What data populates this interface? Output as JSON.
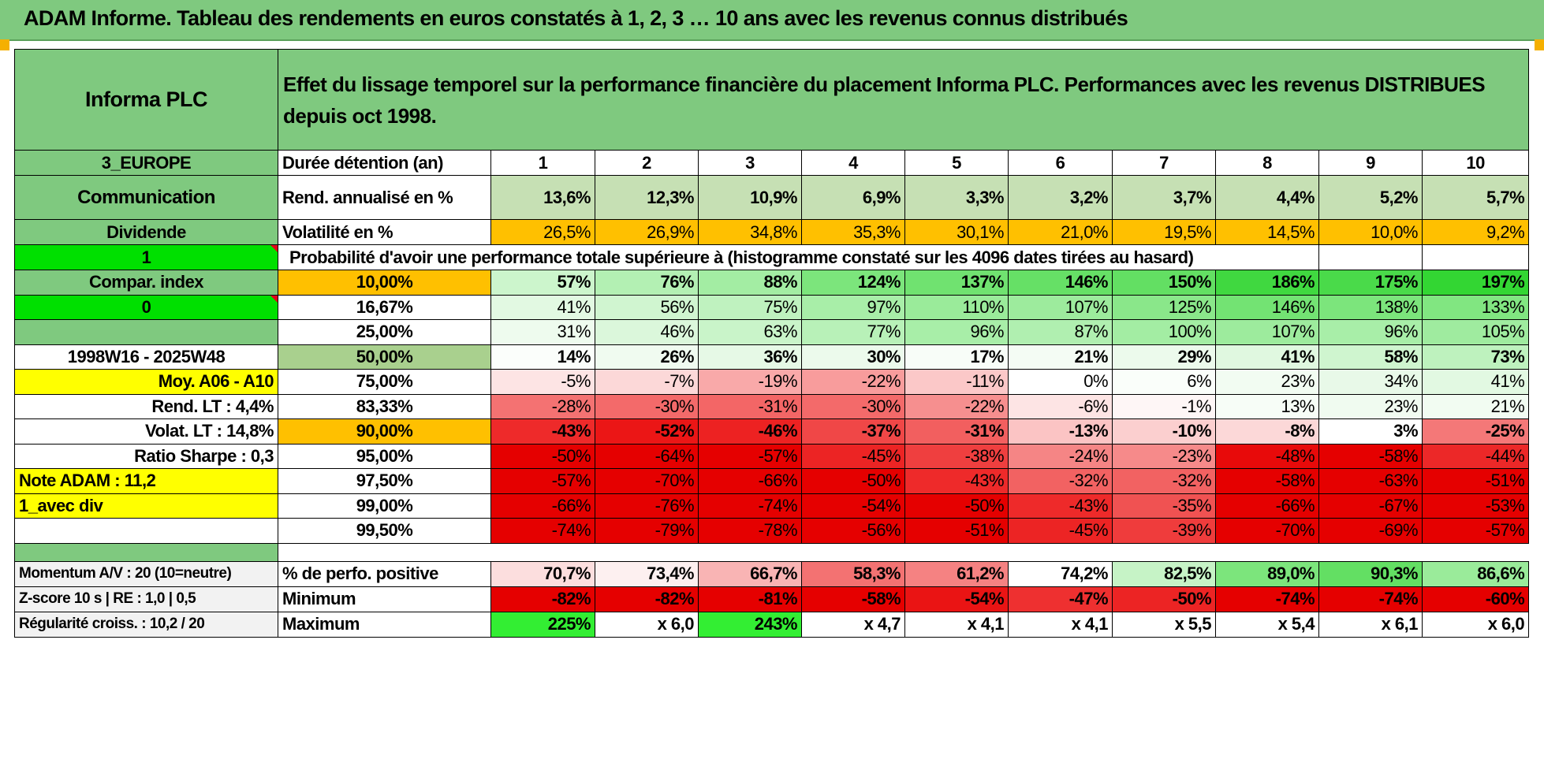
{
  "title": "ADAM Informe. Tableau des rendements en euros constatés à 1, 2, 3 … 10 ans avec les revenus connus distribués",
  "header": {
    "name": "Informa PLC",
    "description": "Effet du lissage temporel sur la performance financière du placement Informa PLC. Performances avec les revenus DISTRIBUES depuis oct 1998."
  },
  "left_labels": {
    "region": "3_EUROPE",
    "sector": "Communication",
    "type": "Dividende",
    "flag1": "1",
    "compar": "Compar. index",
    "flag2": "0",
    "empty": "",
    "period": "1998W16 - 2025W48",
    "moy": "Moy. A06 - A10",
    "rend_lt": "Rend. LT :    4,4%",
    "volat_lt": "Volat. LT :    14,8%",
    "sharpe": "Ratio Sharpe :    0,3",
    "note": "Note ADAM : 11,2",
    "avec_div": "1_avec div"
  },
  "row_labels": {
    "duree": "Durée détention (an)",
    "rend": "Rend. annualisé en %",
    "vol": "Volatilité en %",
    "prob": "Probabilité d'avoir une performance totale supérieure à (histogramme constaté sur les 4096 dates tirées au hasard)"
  },
  "years": [
    "1",
    "2",
    "3",
    "4",
    "5",
    "6",
    "7",
    "8",
    "9",
    "10"
  ],
  "rend": [
    "13,6%",
    "12,3%",
    "10,9%",
    "6,9%",
    "3,3%",
    "3,2%",
    "3,7%",
    "4,4%",
    "5,2%",
    "5,7%"
  ],
  "vol": [
    "26,5%",
    "26,9%",
    "34,8%",
    "35,3%",
    "30,1%",
    "21,0%",
    "19,5%",
    "14,5%",
    "10,0%",
    "9,2%"
  ],
  "quantiles": [
    {
      "q": "10,00%",
      "vals": [
        "57%",
        "76%",
        "88%",
        "124%",
        "137%",
        "146%",
        "150%",
        "186%",
        "175%",
        "197%"
      ],
      "colors": [
        "#ccf5cc",
        "#b3f0b3",
        "#a3eda3",
        "#7ce57c",
        "#70e270",
        "#66e066",
        "#63df63",
        "#40d840",
        "#4ada4a",
        "#33d633"
      ]
    },
    {
      "q": "16,67%",
      "vals": [
        "41%",
        "56%",
        "75%",
        "97%",
        "110%",
        "107%",
        "125%",
        "146%",
        "138%",
        "133%"
      ],
      "colors": [
        "#e2f9e2",
        "#d0f5d0",
        "#bff2bf",
        "#a8eea8",
        "#9aeb9a",
        "#9deb9d",
        "#8ae78a",
        "#73e373",
        "#7ce57c",
        "#81e681"
      ]
    },
    {
      "q": "25,00%",
      "vals": [
        "31%",
        "46%",
        "63%",
        "77%",
        "96%",
        "87%",
        "100%",
        "107%",
        "96%",
        "105%"
      ],
      "colors": [
        "#eefbee",
        "#dbf7db",
        "#c9f4c9",
        "#b8f1b8",
        "#a8eea8",
        "#b0efb0",
        "#a3eda3",
        "#9deb9d",
        "#a8eea8",
        "#9feb9f"
      ]
    },
    {
      "q": "50,00%",
      "vals": [
        "14%",
        "26%",
        "36%",
        "30%",
        "17%",
        "21%",
        "29%",
        "41%",
        "58%",
        "73%"
      ],
      "colors": [
        "#fbfefb",
        "#f0fbf0",
        "#e6f9e6",
        "#ecfaec",
        "#f8fdf8",
        "#f4fcf4",
        "#ecfaec",
        "#e0f8e0",
        "#cff5cf",
        "#bef2be"
      ]
    },
    {
      "q": "75,00%",
      "vals": [
        "-5%",
        "-7%",
        "-19%",
        "-22%",
        "-11%",
        "0%",
        "6%",
        "23%",
        "34%",
        "41%"
      ],
      "colors": [
        "#fde4e4",
        "#fcd8d8",
        "#f9a9a9",
        "#f89c9c",
        "#fbc8c8",
        "#ffffff",
        "#fafefa",
        "#f2fcf2",
        "#e8f9e8",
        "#e2f9e2"
      ]
    },
    {
      "q": "83,33%",
      "vals": [
        "-28%",
        "-30%",
        "-31%",
        "-30%",
        "-22%",
        "-6%",
        "-1%",
        "13%",
        "23%",
        "21%"
      ],
      "colors": [
        "#f47272",
        "#f36a6a",
        "#f36666",
        "#f36a6a",
        "#f68f8f",
        "#fde4e4",
        "#fef6f6",
        "#f7fdf7",
        "#f0fbf0",
        "#f2fcf2"
      ]
    },
    {
      "q": "90,00%",
      "vals": [
        "-43%",
        "-52%",
        "-46%",
        "-37%",
        "-31%",
        "-13%",
        "-10%",
        "-8%",
        "3%",
        "-25%"
      ],
      "colors": [
        "#ee2a2a",
        "#eb1616",
        "#ed2222",
        "#f04747",
        "#f25f5f",
        "#fbc4c4",
        "#fbcfcf",
        "#fcd8d8",
        "#ffffff",
        "#f47878"
      ]
    },
    {
      "q": "95,00%",
      "vals": [
        "-50%",
        "-64%",
        "-57%",
        "-45%",
        "-38%",
        "-24%",
        "-23%",
        "-48%",
        "-58%",
        "-44%"
      ],
      "colors": [
        "#e50000",
        "#e50000",
        "#e50000",
        "#ec2424",
        "#ef3f3f",
        "#f58585",
        "#f68a8a",
        "#e80a0a",
        "#e50000",
        "#ec2828"
      ]
    },
    {
      "q": "97,50%",
      "vals": [
        "-57%",
        "-70%",
        "-66%",
        "-50%",
        "-43%",
        "-32%",
        "-32%",
        "-58%",
        "-63%",
        "-51%"
      ],
      "colors": [
        "#e50000",
        "#e50000",
        "#e50000",
        "#e50000",
        "#ee2a2a",
        "#f26262",
        "#f26262",
        "#e50000",
        "#e50000",
        "#e50000"
      ]
    },
    {
      "q": "99,00%",
      "vals": [
        "-66%",
        "-76%",
        "-74%",
        "-54%",
        "-50%",
        "-43%",
        "-35%",
        "-66%",
        "-67%",
        "-53%"
      ],
      "colors": [
        "#e50000",
        "#e50000",
        "#e50000",
        "#e50000",
        "#e50000",
        "#ee2a2a",
        "#f05252",
        "#e50000",
        "#e50000",
        "#e50000"
      ]
    },
    {
      "q": "99,50%",
      "vals": [
        "-74%",
        "-79%",
        "-78%",
        "-56%",
        "-51%",
        "-45%",
        "-39%",
        "-70%",
        "-69%",
        "-57%"
      ],
      "colors": [
        "#e50000",
        "#e50000",
        "#e50000",
        "#e50000",
        "#e50000",
        "#ec2424",
        "#ef3c3c",
        "#e50000",
        "#e50000",
        "#e50000"
      ]
    }
  ],
  "footer": {
    "momentum": "Momentum A/V : 20 (10=neutre)",
    "zscore": "Z-score 10 s | RE : 1,0 | 0,5",
    "regularite": "Régularité croiss. : 10,2 / 20",
    "pct_label": "% de perfo. positive",
    "min_label": "Minimum",
    "max_label": "Maximum",
    "pct": [
      "70,7%",
      "73,4%",
      "66,7%",
      "58,3%",
      "61,2%",
      "74,2%",
      "82,5%",
      "89,0%",
      "90,3%",
      "86,6%"
    ],
    "pct_colors": [
      "#fcdede",
      "#fdf0f0",
      "#f9b4b4",
      "#f37272",
      "#f58282",
      "#ffffff",
      "#c6f3c6",
      "#7ce57c",
      "#63df63",
      "#9aeb9a"
    ],
    "min": [
      "-82%",
      "-82%",
      "-81%",
      "-58%",
      "-54%",
      "-47%",
      "-50%",
      "-74%",
      "-74%",
      "-60%"
    ],
    "min_colors": [
      "#e50000",
      "#e50000",
      "#e50000",
      "#e50000",
      "#ea1414",
      "#ee3030",
      "#ec2424",
      "#e50000",
      "#e50000",
      "#e50000"
    ],
    "max": [
      "225%",
      "x 6,0",
      "243%",
      "x 4,7",
      "x 4,1",
      "x 4,1",
      "x 5,5",
      "x 5,4",
      "x 6,1",
      "x 6,0"
    ],
    "max_colors": [
      "#33ee33",
      "#ffffff",
      "#33ee33",
      "#ffffff",
      "#ffffff",
      "#ffffff",
      "#ffffff",
      "#ffffff",
      "#ffffff",
      "#ffffff"
    ]
  },
  "colors": {
    "header_green": "#7fc97f",
    "bright_green": "#00e000",
    "orange": "#ffc000",
    "yellow": "#ffff00",
    "red_text": "#e3001b"
  }
}
